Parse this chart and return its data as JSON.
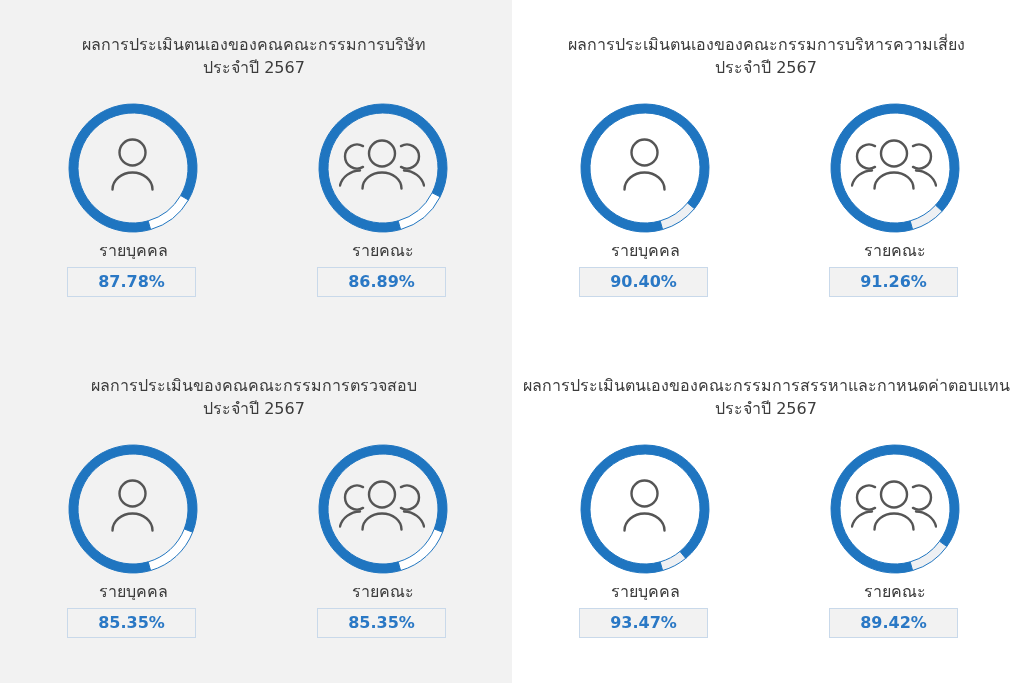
{
  "chart_data": [
    {
      "type": "other",
      "title": "ผลการประเมินตนเองของคณคณะกรรมการบริษัท",
      "subtitle": "ประจำปี 2567"
    },
    {
      "type": "donut",
      "title": "รายบุคคล",
      "categories": [
        null,
        null
      ],
      "values": [
        87.78,
        12.22
      ],
      "colors": [
        "#1f75c0",
        "#ffffff"
      ],
      "value_labels": [
        "87.78%",
        null
      ]
    },
    {
      "type": "donut",
      "title": "รายคณะ",
      "categories": [
        null,
        null
      ],
      "values": [
        86.89,
        13.11
      ],
      "colors": [
        "#1f75c0",
        "#ffffff"
      ],
      "value_labels": [
        "86.89%",
        null
      ]
    },
    {
      "type": "other",
      "title": "ผลการประเมินตนเองของคณะกรรมการบริหารความเสี่ยง",
      "subtitle": "ประจำปี 2567"
    },
    {
      "type": "donut",
      "title": "รายบุคคล",
      "categories": [
        null,
        null
      ],
      "values": [
        90.4,
        9.6
      ],
      "colors": [
        "#1f75c0",
        "#eef0f3"
      ],
      "value_labels": [
        "90.40%",
        null
      ]
    },
    {
      "type": "donut",
      "title": "รายคณะ",
      "categories": [
        null,
        null
      ],
      "values": [
        91.26,
        8.74
      ],
      "colors": [
        "#1f75c0",
        "#eef0f3"
      ],
      "value_labels": [
        "91.26%",
        null
      ]
    },
    {
      "type": "other",
      "title": "ผลการประเมินของคณคณะกรรมการตรวจสอบ",
      "subtitle": "ประจำปี 2567"
    },
    {
      "type": "donut",
      "title": "รายบุคคล",
      "categories": [
        null,
        null
      ],
      "values": [
        85.35,
        14.65
      ],
      "colors": [
        "#1f75c0",
        "#ffffff"
      ],
      "value_labels": [
        "85.35%",
        null
      ]
    },
    {
      "type": "donut",
      "title": "รายคณะ",
      "categories": [
        null,
        null
      ],
      "values": [
        85.35,
        14.65
      ],
      "colors": [
        "#1f75c0",
        "#ffffff"
      ],
      "value_labels": [
        "85.35%",
        null
      ]
    },
    {
      "type": "other",
      "title": "ผลการประเมินตนเองของคณะกรรมการสรรหาและกาหนดค่าตอบแทน",
      "subtitle": "ประจำปี 2567"
    },
    {
      "type": "donut",
      "title": "รายบุคคล",
      "categories": [
        null,
        null
      ],
      "values": [
        93.47,
        6.53
      ],
      "colors": [
        "#1f75c0",
        "#eef0f3"
      ],
      "value_labels": [
        "93.47%",
        null
      ]
    },
    {
      "type": "donut",
      "title": "รายคณะ",
      "categories": [
        null,
        null
      ],
      "values": [
        89.42,
        10.58
      ],
      "colors": [
        "#1f75c0",
        "#eef0f3"
      ],
      "value_labels": [
        "89.42%",
        null
      ]
    }
  ]
}
